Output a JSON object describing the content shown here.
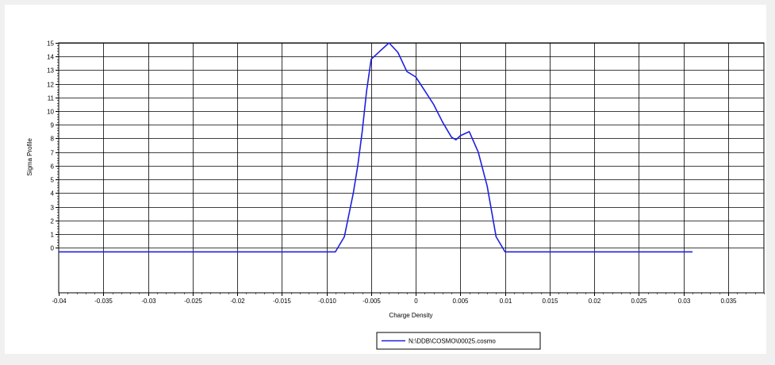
{
  "chart_data": {
    "type": "line",
    "xlabel": "Charge Density",
    "ylabel": "Sigma Profile",
    "xlim": [
      -0.04,
      0.039
    ],
    "ylim": [
      -3.3,
      15
    ],
    "x_ticks": [
      "-0.04",
      "-0.035",
      "-0.03",
      "-0.025",
      "-0.02",
      "-0.015",
      "-0.010",
      "-0.005",
      "0",
      "0.005",
      "0.01",
      "0.015",
      "0.02",
      "0.025",
      "0.03",
      "0.035"
    ],
    "x_tick_values": [
      -0.04,
      -0.035,
      -0.03,
      -0.025,
      -0.02,
      -0.015,
      -0.01,
      -0.005,
      0,
      0.005,
      0.01,
      0.015,
      0.02,
      0.025,
      0.03,
      0.035
    ],
    "y_ticks": [
      "0",
      "1",
      "2",
      "3",
      "4",
      "5",
      "6",
      "7",
      "8",
      "9",
      "10",
      "11",
      "12",
      "13",
      "14",
      "15"
    ],
    "y_tick_values": [
      0,
      1,
      2,
      3,
      4,
      5,
      6,
      7,
      8,
      9,
      10,
      11,
      12,
      13,
      14,
      15
    ],
    "grid": true,
    "legend_position": "bottom-center",
    "line_color": "#1f1fe0",
    "series": [
      {
        "name": "N:\\DDB\\COSMO\\00025.cosmo",
        "x": [
          -0.04,
          -0.009,
          -0.008,
          -0.007,
          -0.0065,
          -0.006,
          -0.0055,
          -0.005,
          -0.004,
          -0.003,
          -0.002,
          -0.001,
          0.0,
          0.001,
          0.002,
          0.003,
          0.004,
          0.0045,
          0.005,
          0.006,
          0.007,
          0.008,
          0.009,
          0.01,
          0.031
        ],
        "y": [
          -0.3,
          -0.3,
          0.8,
          4.0,
          6.0,
          8.5,
          11.5,
          13.8,
          14.4,
          15.0,
          14.3,
          12.9,
          12.5,
          11.5,
          10.5,
          9.2,
          8.1,
          7.9,
          8.2,
          8.5,
          7.0,
          4.5,
          0.8,
          -0.3,
          -0.3
        ]
      }
    ]
  }
}
